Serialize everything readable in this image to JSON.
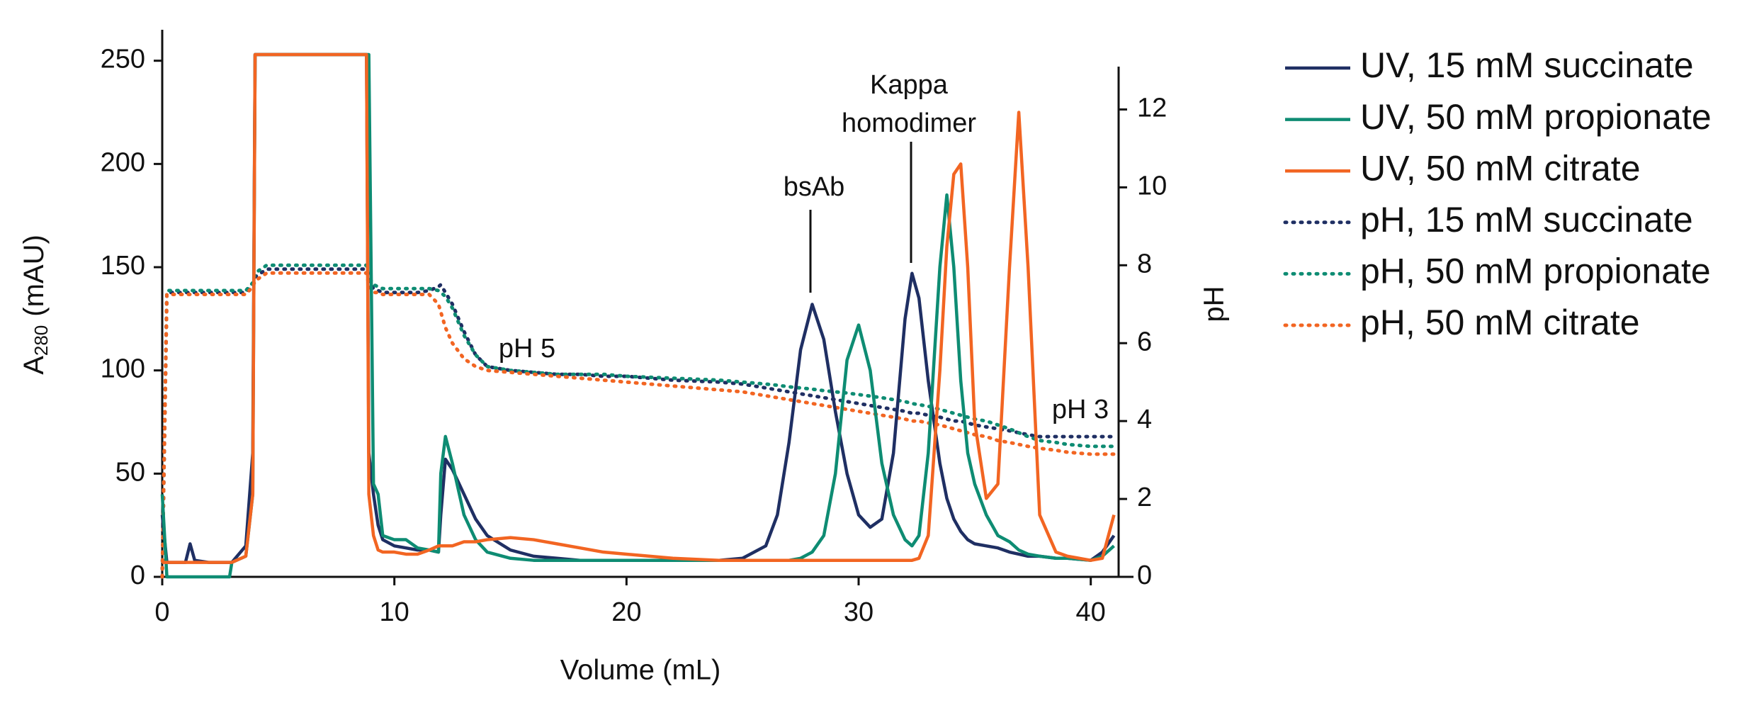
{
  "chart_data": {
    "type": "line",
    "xlabel": "Volume (mL)",
    "ylabel": "A",
    "ylabel_subscript": "280",
    "ylabel_unit": "(mAU)",
    "y2label": "pH",
    "xlim": [
      0,
      41.2
    ],
    "xticks": [
      0,
      10,
      20,
      30,
      40
    ],
    "ylim": [
      0,
      265
    ],
    "yticks": [
      0,
      50,
      100,
      150,
      200,
      250
    ],
    "y2lim": [
      0,
      13.1
    ],
    "y2ticks": [
      0,
      2,
      4,
      6,
      8,
      10,
      12
    ],
    "legend": "outside-right",
    "annotations": {
      "ph5": "pH 5",
      "ph3": "pH 3",
      "bsab": "bsAb",
      "kappa": [
        "Kappa",
        "homodimer"
      ]
    },
    "x": [
      0,
      0.2,
      0.4,
      1,
      1.2,
      1.4,
      2,
      2.9,
      3,
      3.6,
      3.9,
      4,
      4.5,
      5,
      6,
      7,
      8,
      8.8,
      8.9,
      9.1,
      9.3,
      9.5,
      10,
      10.5,
      11,
      11.5,
      11.9,
      12,
      12.2,
      12.5,
      13,
      13.5,
      14,
      15,
      16,
      17,
      18,
      19,
      20,
      22,
      24,
      25,
      26,
      26.5,
      27,
      27.5,
      28,
      28.5,
      29,
      29.5,
      30,
      30.5,
      31,
      31.5,
      32,
      32.3,
      32.6,
      33,
      33.5,
      33.8,
      34.1,
      34.4,
      34.7,
      35,
      35.5,
      36,
      36.5,
      36.9,
      37.3,
      37.8,
      38.5,
      39,
      40,
      40.5,
      41
    ],
    "series": [
      {
        "name": "UV, 15 mM succinate",
        "color": "#1f2f63",
        "style": "solid",
        "axis": "y",
        "values": [
          30,
          7,
          7,
          7,
          16,
          8,
          7,
          7,
          7,
          15,
          60,
          253,
          253,
          253,
          253,
          253,
          253,
          253,
          60,
          40,
          25,
          18,
          15,
          14,
          13,
          13,
          12,
          30,
          57,
          52,
          40,
          28,
          20,
          13,
          10,
          9,
          8,
          8,
          8,
          8,
          8,
          9,
          15,
          30,
          65,
          110,
          132,
          115,
          80,
          50,
          30,
          24,
          28,
          60,
          125,
          147,
          135,
          95,
          55,
          38,
          28,
          22,
          18,
          16,
          15,
          14,
          12,
          11,
          10,
          10,
          9,
          9,
          8,
          12,
          20
        ]
      },
      {
        "name": "UV, 50 mM propionate",
        "color": "#0e8c73",
        "style": "solid",
        "axis": "y",
        "values": [
          40,
          0,
          0,
          0,
          0,
          0,
          0,
          0,
          7,
          10,
          40,
          253,
          253,
          253,
          253,
          253,
          253,
          253,
          253,
          45,
          40,
          20,
          18,
          18,
          14,
          13,
          12,
          50,
          68,
          55,
          30,
          18,
          12,
          9,
          8,
          8,
          8,
          8,
          8,
          8,
          8,
          8,
          8,
          8,
          8,
          9,
          12,
          20,
          50,
          105,
          122,
          100,
          55,
          30,
          18,
          15,
          20,
          60,
          150,
          185,
          150,
          95,
          60,
          45,
          30,
          20,
          17,
          13,
          11,
          10,
          9,
          9,
          8,
          10,
          15
        ]
      },
      {
        "name": "UV, 50 mM citrate",
        "color": "#f26522",
        "style": "solid",
        "axis": "y",
        "values": [
          7,
          7,
          7,
          7,
          7,
          7,
          7,
          7,
          7,
          10,
          40,
          253,
          253,
          253,
          253,
          253,
          253,
          253,
          40,
          20,
          13,
          12,
          12,
          11,
          11,
          13,
          15,
          15,
          15,
          15,
          17,
          17,
          18,
          19,
          18,
          16,
          14,
          12,
          11,
          9,
          8,
          8,
          8,
          8,
          8,
          8,
          8,
          8,
          8,
          8,
          8,
          8,
          8,
          8,
          8,
          8,
          9,
          20,
          100,
          160,
          195,
          200,
          150,
          75,
          38,
          45,
          150,
          225,
          150,
          30,
          12,
          10,
          8,
          9,
          30
        ]
      },
      {
        "name": "pH, 15 mM succinate",
        "color": "#1f2f63",
        "style": "dotted",
        "axis": "y2",
        "values": [
          0,
          7.3,
          7.3,
          7.3,
          7.3,
          7.3,
          7.3,
          7.3,
          7.3,
          7.3,
          7.5,
          7.7,
          7.9,
          7.9,
          7.9,
          7.9,
          7.9,
          7.9,
          7.6,
          7.4,
          7.35,
          7.3,
          7.3,
          7.3,
          7.3,
          7.35,
          7.45,
          7.5,
          7.3,
          7.0,
          6.3,
          5.7,
          5.4,
          5.3,
          5.25,
          5.2,
          5.2,
          5.15,
          5.15,
          5.05,
          5.0,
          4.95,
          4.85,
          4.8,
          4.75,
          4.7,
          4.65,
          4.6,
          4.55,
          4.5,
          4.45,
          4.4,
          4.35,
          4.3,
          4.25,
          4.2,
          4.2,
          4.15,
          4.1,
          4.05,
          4.0,
          4.0,
          3.95,
          3.9,
          3.85,
          3.8,
          3.75,
          3.7,
          3.65,
          3.6,
          3.6,
          3.6,
          3.6,
          3.6,
          3.6
        ]
      },
      {
        "name": "pH, 50 mM propionate",
        "color": "#0e8c73",
        "style": "dotted",
        "axis": "y2",
        "values": [
          0,
          7.35,
          7.35,
          7.35,
          7.35,
          7.35,
          7.35,
          7.35,
          7.35,
          7.35,
          7.55,
          7.8,
          8.0,
          8.0,
          8.0,
          8.0,
          8.0,
          8.0,
          7.7,
          7.5,
          7.45,
          7.4,
          7.4,
          7.4,
          7.4,
          7.4,
          7.35,
          7.3,
          7.2,
          6.9,
          6.2,
          5.7,
          5.4,
          5.3,
          5.25,
          5.2,
          5.2,
          5.2,
          5.15,
          5.1,
          5.05,
          5.0,
          4.95,
          4.92,
          4.88,
          4.85,
          4.82,
          4.78,
          4.75,
          4.72,
          4.68,
          4.64,
          4.6,
          4.55,
          4.5,
          4.45,
          4.42,
          4.38,
          4.3,
          4.25,
          4.2,
          4.15,
          4.1,
          4.05,
          4.0,
          3.9,
          3.8,
          3.7,
          3.6,
          3.5,
          3.45,
          3.4,
          3.35,
          3.35,
          3.35
        ]
      },
      {
        "name": "pH, 50 mM citrate",
        "color": "#f26522",
        "style": "dotted",
        "axis": "y2",
        "values": [
          0,
          7.25,
          7.25,
          7.25,
          7.25,
          7.25,
          7.25,
          7.25,
          7.25,
          7.25,
          7.45,
          7.6,
          7.8,
          7.8,
          7.8,
          7.8,
          7.8,
          7.8,
          7.5,
          7.3,
          7.3,
          7.25,
          7.25,
          7.25,
          7.25,
          7.25,
          7.0,
          6.8,
          6.4,
          6.0,
          5.6,
          5.4,
          5.3,
          5.25,
          5.2,
          5.15,
          5.1,
          5.05,
          5.0,
          4.9,
          4.8,
          4.75,
          4.65,
          4.6,
          4.55,
          4.5,
          4.45,
          4.4,
          4.35,
          4.3,
          4.25,
          4.2,
          4.15,
          4.1,
          4.05,
          4.0,
          4.0,
          3.95,
          3.9,
          3.85,
          3.8,
          3.75,
          3.7,
          3.65,
          3.6,
          3.5,
          3.45,
          3.4,
          3.35,
          3.3,
          3.25,
          3.2,
          3.15,
          3.15,
          3.15
        ]
      }
    ]
  }
}
